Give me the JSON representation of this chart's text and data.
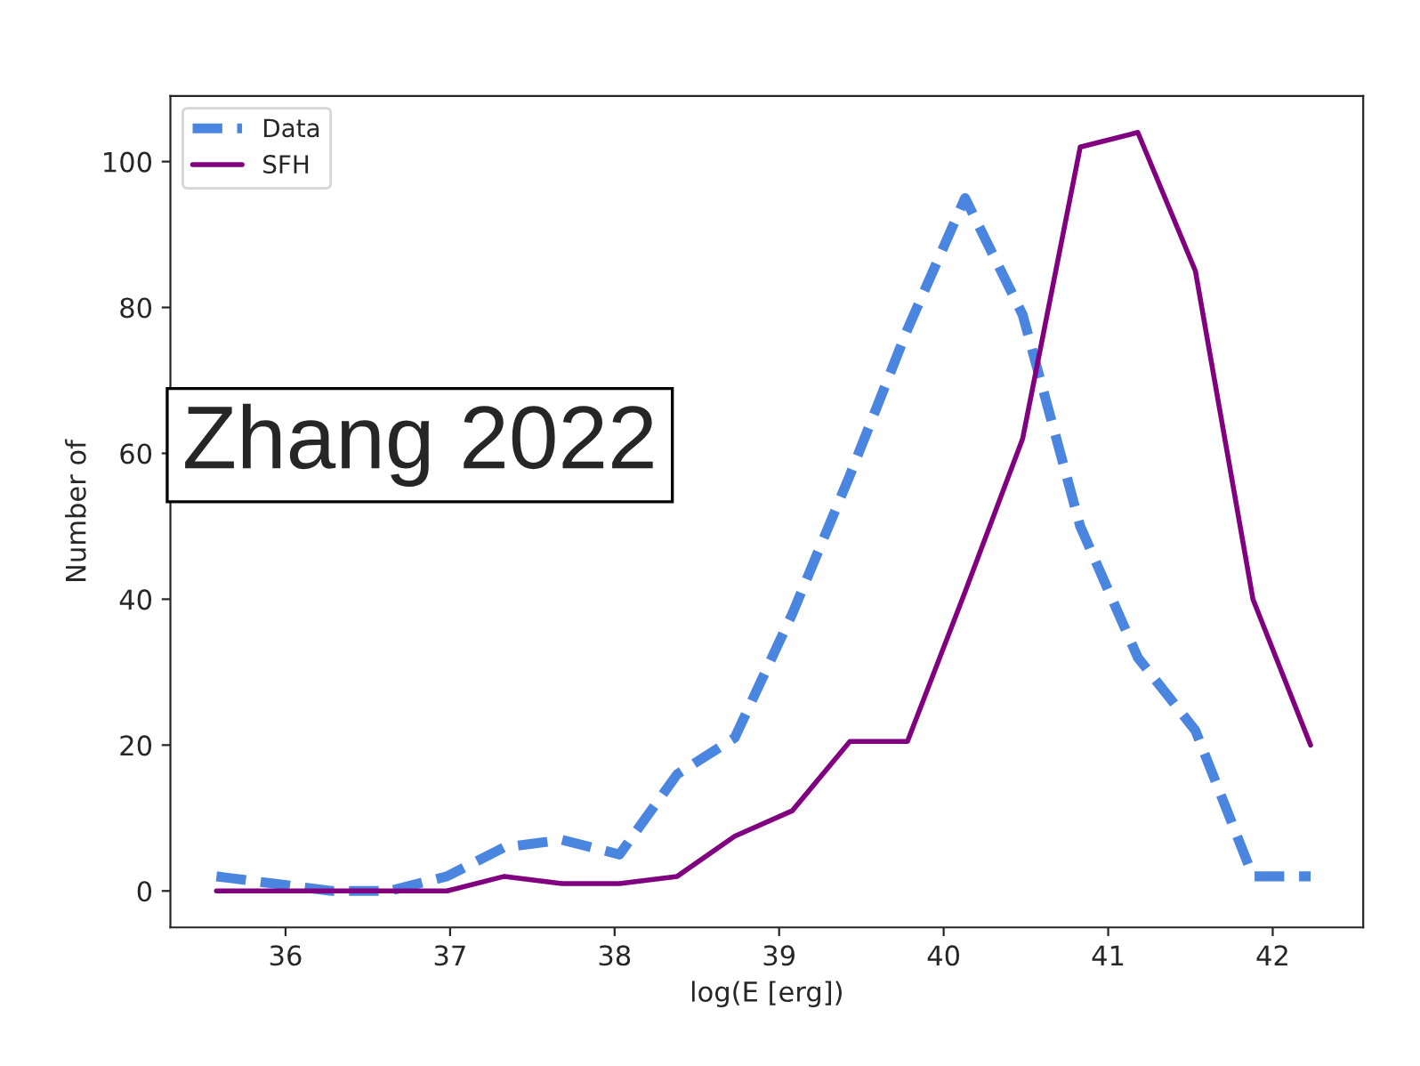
{
  "chart_data": {
    "type": "line",
    "xlabel": "log(E [erg])",
    "ylabel": "Number of",
    "x": [
      35.58,
      35.93,
      36.28,
      36.63,
      36.98,
      37.33,
      37.68,
      38.03,
      38.38,
      38.73,
      39.08,
      39.43,
      39.78,
      40.13,
      40.48,
      40.83,
      41.18,
      41.53,
      41.88,
      42.23
    ],
    "series": [
      {
        "name": "Data",
        "color": "#4a86e0",
        "line_style": "dashed",
        "values": [
          2,
          1,
          0,
          0,
          2,
          6,
          7,
          5,
          16,
          21,
          38,
          57,
          77,
          95,
          79,
          50,
          32,
          22,
          2,
          2
        ]
      },
      {
        "name": "SFH",
        "color": "#800080",
        "line_style": "solid",
        "values": [
          0,
          0,
          0,
          0,
          0,
          2,
          1,
          1,
          2,
          7.5,
          11,
          20.5,
          20.5,
          41,
          62,
          102,
          104,
          85,
          40,
          20
        ]
      }
    ],
    "xlim": [
      35.3,
      42.55
    ],
    "xticks": [
      36,
      37,
      38,
      39,
      40,
      41,
      42
    ],
    "ylim": [
      -5,
      109
    ],
    "yticks": [
      0,
      20,
      40,
      60,
      80,
      100
    ],
    "grid": false,
    "legend": "top left",
    "annotations": [
      "Zhang 2022"
    ]
  }
}
